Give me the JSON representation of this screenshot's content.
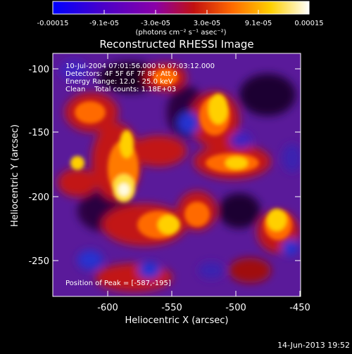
{
  "colorbar": {
    "tick_labels": [
      "-0.00015",
      "-9.1e-05",
      "-3.0e-05",
      "3.0e-05",
      "9.1e-05",
      "0.00015"
    ],
    "unit_label": "(photons cm⁻² s⁻¹ asec⁻²)",
    "min": -0.00015,
    "max": 0.00015,
    "stops": [
      "#0000ff",
      "#4b00c8",
      "#8a00a8",
      "#c21010",
      "#ff6a00",
      "#ffd000",
      "#ffffff"
    ]
  },
  "title": "Reconstructed RHESSI Image",
  "info": {
    "line1": "10-Jul-2004 07:01:56.000 to 07:03:12.000",
    "line2": "Detectors: 4F 5F 6F 7F 8F, Att 0",
    "line3": "Energy Range: 12.0 - 25.0 keV",
    "line4": "Clean    Total counts: 1.18E+03"
  },
  "peak_label": "Position of Peak = [-587,-195]",
  "axes": {
    "xlabel": "Heliocentric X (arcsec)",
    "ylabel": "Heliocentric Y (arcsec)",
    "x_ticks": [
      "-600",
      "-550",
      "-500",
      "-450"
    ],
    "y_ticks": [
      "-100",
      "-150",
      "-200",
      "-250"
    ],
    "xlim": [
      -645,
      -450
    ],
    "ylim": [
      -280,
      -88
    ]
  },
  "timestamp": "14-Jun-2013 19:52"
}
